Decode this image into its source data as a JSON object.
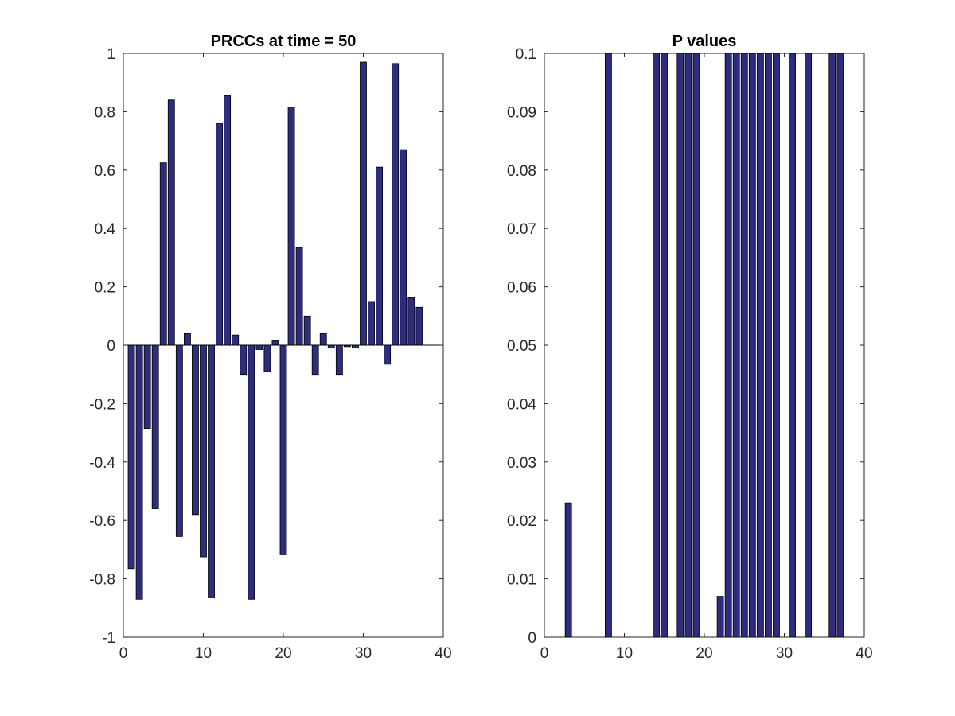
{
  "chart_data": [
    {
      "type": "bar",
      "title": "PRCCs at time = 50",
      "xlabel": "",
      "ylabel": "",
      "xlim": [
        0,
        40
      ],
      "ylim": [
        -1,
        1
      ],
      "xticks": [
        "0",
        "10",
        "20",
        "30",
        "40"
      ],
      "yticks": [
        "-1",
        "-0.8",
        "-0.6",
        "-0.4",
        "-0.2",
        "0",
        "0.2",
        "0.4",
        "0.6",
        "0.8",
        "1"
      ],
      "grid": false,
      "bar_color": "#2e2c7e",
      "x": [
        1,
        2,
        3,
        4,
        5,
        6,
        7,
        8,
        9,
        10,
        11,
        12,
        13,
        14,
        15,
        16,
        17,
        18,
        19,
        20,
        21,
        22,
        23,
        24,
        25,
        26,
        27,
        28,
        29,
        30,
        31,
        32,
        33,
        34,
        35,
        36,
        37
      ],
      "values": [
        -0.765,
        -0.87,
        -0.285,
        -0.56,
        0.625,
        0.84,
        -0.655,
        0.04,
        -0.58,
        -0.725,
        -0.865,
        0.76,
        0.855,
        0.035,
        -0.1,
        -0.87,
        -0.015,
        -0.09,
        0.015,
        -0.715,
        0.815,
        0.335,
        0.1,
        -0.1,
        0.04,
        -0.01,
        -0.1,
        -0.005,
        -0.01,
        0.97,
        0.15,
        0.61,
        -0.065,
        0.965,
        0.67,
        0.165,
        0.13
      ]
    },
    {
      "type": "bar",
      "title": "P values",
      "xlabel": "",
      "ylabel": "",
      "xlim": [
        0,
        40
      ],
      "ylim": [
        0,
        0.1
      ],
      "xticks": [
        "0",
        "10",
        "20",
        "30",
        "40"
      ],
      "yticks": [
        "0",
        "0.01",
        "0.02",
        "0.03",
        "0.04",
        "0.05",
        "0.06",
        "0.07",
        "0.08",
        "0.09",
        "0.1"
      ],
      "grid": false,
      "bar_color": "#2e2c7e",
      "x": [
        1,
        2,
        3,
        4,
        5,
        6,
        7,
        8,
        9,
        10,
        11,
        12,
        13,
        14,
        15,
        16,
        17,
        18,
        19,
        20,
        21,
        22,
        23,
        24,
        25,
        26,
        27,
        28,
        29,
        30,
        31,
        32,
        33,
        34,
        35,
        36,
        37
      ],
      "values": [
        0,
        0,
        0.023,
        0,
        0,
        0,
        0,
        0.1,
        0,
        0,
        0,
        0,
        0,
        0.1,
        0.1,
        0,
        0.1,
        0.1,
        0.1,
        0,
        0,
        0.007,
        0.1,
        0.1,
        0.1,
        0.1,
        0.1,
        0.1,
        0.1,
        0,
        0.1,
        0,
        0.1,
        0,
        0,
        0.1,
        0.1
      ]
    }
  ]
}
